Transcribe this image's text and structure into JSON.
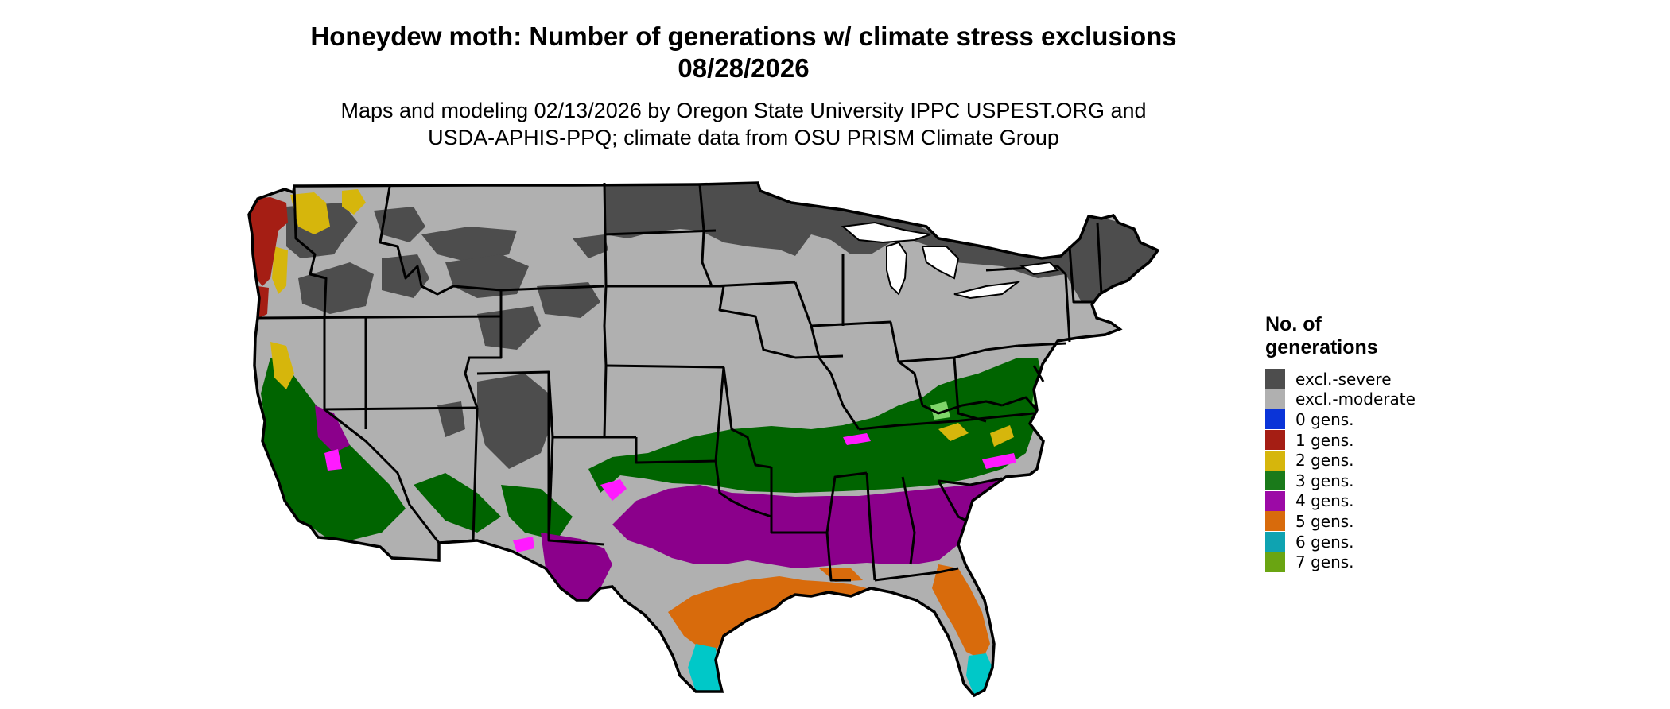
{
  "header": {
    "title_line1": "Honeydew moth: Number of generations w/ climate stress exclusions",
    "title_line2": "08/28/2026",
    "subtitle_line1": "Maps and modeling 02/13/2026 by Oregon State University IPPC USPEST.ORG and",
    "subtitle_line2": "USDA-APHIS-PPQ; climate data from OSU PRISM Climate Group"
  },
  "legend": {
    "title_line1": "No. of",
    "title_line2": "generations",
    "items": [
      {
        "label": "excl.-severe",
        "color": "#4d4d4d"
      },
      {
        "label": "excl.-moderate",
        "color": "#b0b0b0"
      },
      {
        "label": "0 gens.",
        "color": "#0a34d8"
      },
      {
        "label": "1 gens.",
        "color": "#a51e14"
      },
      {
        "label": "2 gens.",
        "color": "#d6b60c"
      },
      {
        "label": "3 gens.",
        "color": "#1a7a1a"
      },
      {
        "label": "4 gens.",
        "color": "#9c0aa6"
      },
      {
        "label": "5 gens.",
        "color": "#d86b0c"
      },
      {
        "label": "6 gens.",
        "color": "#0fa3b1"
      },
      {
        "label": "7 gens.",
        "color": "#6aa512"
      }
    ]
  },
  "map": {
    "region": "Contiguous United States",
    "colors": {
      "severe": "#4d4d4d",
      "moderate": "#b0b0b0",
      "g1": "#a51e14",
      "g2": "#d6b60c",
      "g3": "#006400",
      "g3light": "#7fd66a",
      "g4": "#8b008b",
      "g4hi": "#ff1aff",
      "g5": "#d86b0c",
      "g6": "#00c8c8",
      "g7": "#6aa512",
      "border": "#000000"
    }
  }
}
